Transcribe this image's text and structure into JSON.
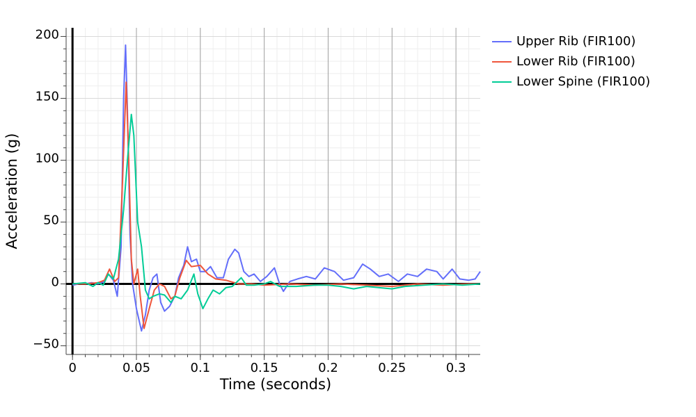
{
  "chart_data": {
    "type": "line",
    "x_label": "Time (seconds)",
    "y_label": "Acceleration (g)",
    "xlim": [
      -0.005,
      0.319
    ],
    "ylim": [
      -57,
      207
    ],
    "xticks": [
      0,
      0.05,
      0.1,
      0.15,
      0.2,
      0.25,
      0.3
    ],
    "yticks": [
      {
        "value": -50,
        "label": "−50"
      },
      0,
      50,
      100,
      150,
      200
    ],
    "grid": true,
    "legend": "right",
    "series": [
      {
        "name": "Upper Rib (FIR100)",
        "color": "#636efa",
        "x": [
          0,
          0.005,
          0.01,
          0.015,
          0.02,
          0.025,
          0.028,
          0.032,
          0.035,
          0.038,
          0.04,
          0.0415,
          0.043,
          0.045,
          0.047,
          0.05,
          0.054,
          0.057,
          0.06,
          0.063,
          0.066,
          0.069,
          0.072,
          0.076,
          0.08,
          0.083,
          0.087,
          0.09,
          0.093,
          0.097,
          0.1,
          0.104,
          0.108,
          0.113,
          0.118,
          0.122,
          0.127,
          0.13,
          0.134,
          0.138,
          0.142,
          0.147,
          0.152,
          0.158,
          0.162,
          0.165,
          0.17,
          0.176,
          0.183,
          0.19,
          0.197,
          0.205,
          0.212,
          0.22,
          0.227,
          0.233,
          0.24,
          0.247,
          0.255,
          0.262,
          0.27,
          0.277,
          0.285,
          0.29,
          0.297,
          0.303,
          0.31,
          0.315,
          0.319
        ],
        "values": [
          -1,
          0,
          0,
          1,
          0,
          2,
          8,
          3,
          -10,
          30,
          150,
          193,
          140,
          40,
          0,
          -20,
          -38,
          -25,
          -5,
          5,
          8,
          -15,
          -22,
          -18,
          -10,
          5,
          15,
          30,
          18,
          20,
          10,
          10,
          14,
          5,
          5,
          20,
          28,
          25,
          10,
          6,
          8,
          2,
          6,
          13,
          0,
          -6,
          2,
          4,
          6,
          4,
          13,
          10,
          3,
          5,
          16,
          12,
          6,
          8,
          2,
          8,
          6,
          12,
          10,
          4,
          12,
          4,
          3,
          4,
          10
        ]
      },
      {
        "name": "Lower Rib (FIR100)",
        "color": "#ef553b",
        "x": [
          0,
          0.01,
          0.02,
          0.025,
          0.029,
          0.033,
          0.036,
          0.039,
          0.042,
          0.044,
          0.046,
          0.048,
          0.051,
          0.053,
          0.056,
          0.06,
          0.064,
          0.068,
          0.072,
          0.077,
          0.08,
          0.084,
          0.089,
          0.093,
          0.1,
          0.106,
          0.112,
          0.12,
          0.13,
          0.14,
          0.15,
          0.17,
          0.19,
          0.21,
          0.23,
          0.25,
          0.27,
          0.29,
          0.31,
          0.319
        ],
        "values": [
          0,
          0,
          1,
          3,
          12,
          2,
          5,
          80,
          163,
          100,
          20,
          0,
          12,
          -10,
          -36,
          -20,
          -5,
          0,
          -2,
          -12,
          -10,
          5,
          19,
          14,
          15,
          8,
          4,
          3,
          0,
          0,
          -1,
          0,
          -1,
          0,
          -1,
          -2,
          0,
          -1,
          0,
          0
        ]
      },
      {
        "name": "Lower Spine (FIR100)",
        "color": "#00cc96",
        "x": [
          0,
          0.01,
          0.016,
          0.02,
          0.024,
          0.028,
          0.032,
          0.036,
          0.04,
          0.043,
          0.046,
          0.048,
          0.051,
          0.054,
          0.057,
          0.06,
          0.063,
          0.068,
          0.072,
          0.077,
          0.08,
          0.085,
          0.09,
          0.095,
          0.098,
          0.102,
          0.106,
          0.11,
          0.115,
          0.12,
          0.125,
          0.132,
          0.136,
          0.142,
          0.15,
          0.155,
          0.162,
          0.175,
          0.19,
          0.2,
          0.21,
          0.22,
          0.23,
          0.24,
          0.25,
          0.26,
          0.275,
          0.29,
          0.305,
          0.319
        ],
        "values": [
          0,
          1,
          -2,
          1,
          -1,
          8,
          4,
          20,
          60,
          100,
          137,
          120,
          50,
          30,
          -5,
          -12,
          -10,
          -8,
          -9,
          -15,
          -10,
          -12,
          -5,
          8,
          -8,
          -20,
          -12,
          -5,
          -8,
          -3,
          -2,
          5,
          -1,
          -1,
          0,
          2,
          -2,
          -2,
          -1,
          -1,
          -2,
          -4,
          -2,
          -3,
          -4,
          -2,
          -1,
          0,
          -1,
          0
        ]
      }
    ]
  }
}
